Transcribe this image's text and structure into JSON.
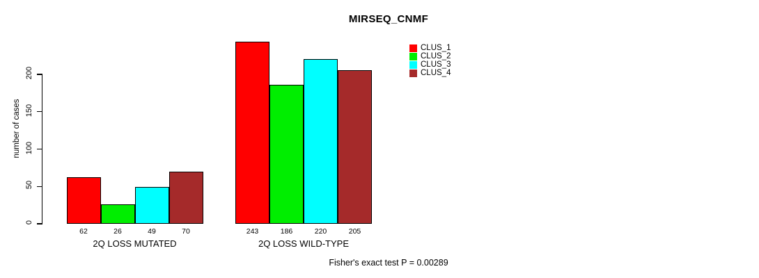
{
  "chart_data": {
    "type": "bar",
    "title": "MIRSEQ_CNMF",
    "ylabel": "number of cases",
    "xlabel": "",
    "categories": [
      "2Q LOSS MUTATED",
      "2Q LOSS WILD-TYPE"
    ],
    "series": [
      {
        "name": "CLUS_1",
        "color": "#ff0000",
        "values": [
          62,
          243
        ]
      },
      {
        "name": "CLUS_2",
        "color": "#00ee00",
        "values": [
          26,
          186
        ]
      },
      {
        "name": "CLUS_3",
        "color": "#00ffff",
        "values": [
          49,
          220
        ]
      },
      {
        "name": "CLUS_4",
        "color": "#a52a2a",
        "values": [
          70,
          205
        ]
      }
    ],
    "yticks": [
      "0",
      "50",
      "100",
      "150",
      "200"
    ],
    "ylim": [
      0,
      250
    ],
    "grid": false,
    "legend_position": "right",
    "annotation": "Fisher's exact test P = 0.00289"
  }
}
